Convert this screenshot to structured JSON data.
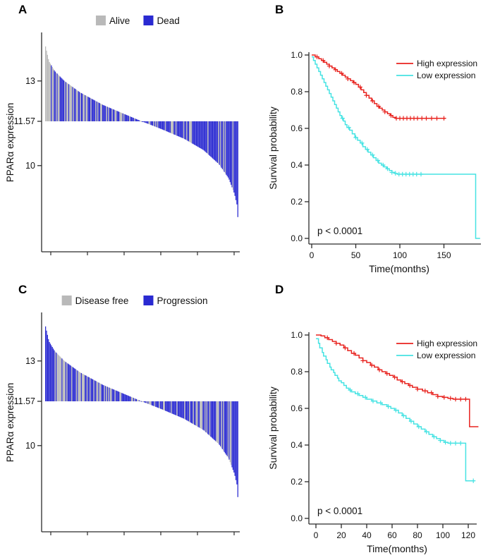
{
  "figure": {
    "background": "#ffffff"
  },
  "chart_data": [
    {
      "panel": "A",
      "type": "bar",
      "subtype": "expression-waterfall",
      "ylabel": "PPARα expression",
      "baseline": 11.57,
      "yticks": [
        {
          "v": 13,
          "label": "13"
        },
        {
          "v": 11.57,
          "label": "11.57"
        },
        {
          "v": 10,
          "label": "10"
        }
      ],
      "legend": [
        {
          "label": "Alive",
          "color": "#b9b9b9"
        },
        {
          "label": "Dead",
          "color": "#2a2ad1"
        }
      ],
      "n_bars": 200,
      "ylim": [
        7.5,
        14.6
      ],
      "value_profile": [
        [
          0,
          14.3
        ],
        [
          0.02,
          13.7
        ],
        [
          0.05,
          13.35
        ],
        [
          0.1,
          13.0
        ],
        [
          0.18,
          12.6
        ],
        [
          0.3,
          12.15
        ],
        [
          0.42,
          11.8
        ],
        [
          0.5,
          11.57
        ],
        [
          0.6,
          11.3
        ],
        [
          0.72,
          10.95
        ],
        [
          0.82,
          10.55
        ],
        [
          0.9,
          10.05
        ],
        [
          0.95,
          9.55
        ],
        [
          0.98,
          9.0
        ],
        [
          0.995,
          8.55
        ],
        [
          1.0,
          7.8
        ]
      ],
      "event_fraction_high": 0.5,
      "event_fraction_low": 0.8,
      "seed": 11
    },
    {
      "panel": "B",
      "type": "line",
      "subtype": "kaplan-meier",
      "xlabel": "Time(months)",
      "ylabel": "Survival probability",
      "xticks": [
        0,
        50,
        100,
        150
      ],
      "yticks": [
        0,
        0.2,
        0.4,
        0.6,
        0.8,
        1
      ],
      "ytick_labels": [
        "0.0",
        "0.2",
        "0.4",
        "0.6",
        "0.8",
        "1.0"
      ],
      "xlim": [
        0,
        190
      ],
      "ylim": [
        0,
        1
      ],
      "annotation": "p < 0.0001",
      "legend_position": "top-right",
      "series": [
        {
          "name": "High expression",
          "color": "#e8231f",
          "steps": [
            [
              0,
              1.0
            ],
            [
              4,
              0.99
            ],
            [
              8,
              0.98
            ],
            [
              11,
              0.97
            ],
            [
              14,
              0.96
            ],
            [
              17,
              0.95
            ],
            [
              20,
              0.94
            ],
            [
              23,
              0.93
            ],
            [
              26,
              0.92
            ],
            [
              29,
              0.91
            ],
            [
              32,
              0.9
            ],
            [
              35,
              0.89
            ],
            [
              38,
              0.88
            ],
            [
              41,
              0.87
            ],
            [
              44,
              0.86
            ],
            [
              47,
              0.85
            ],
            [
              50,
              0.84
            ],
            [
              53,
              0.825
            ],
            [
              56,
              0.81
            ],
            [
              59,
              0.795
            ],
            [
              62,
              0.78
            ],
            [
              65,
              0.765
            ],
            [
              68,
              0.75
            ],
            [
              71,
              0.735
            ],
            [
              74,
              0.72
            ],
            [
              77,
              0.71
            ],
            [
              80,
              0.7
            ],
            [
              83,
              0.69
            ],
            [
              86,
              0.68
            ],
            [
              89,
              0.67
            ],
            [
              92,
              0.66
            ],
            [
              95,
              0.655
            ],
            [
              152,
              0.655
            ]
          ],
          "censor_times": [
            6,
            13,
            20,
            27,
            34,
            41,
            48,
            55,
            62,
            69,
            76,
            83,
            90,
            96,
            100,
            104,
            108,
            112,
            116,
            120,
            125,
            130,
            136,
            142,
            150
          ]
        },
        {
          "name": "Low expression",
          "color": "#46e3e3",
          "steps": [
            [
              0,
              0.99
            ],
            [
              2,
              0.97
            ],
            [
              4,
              0.95
            ],
            [
              6,
              0.93
            ],
            [
              8,
              0.91
            ],
            [
              10,
              0.89
            ],
            [
              12,
              0.87
            ],
            [
              14,
              0.85
            ],
            [
              16,
              0.83
            ],
            [
              18,
              0.81
            ],
            [
              20,
              0.79
            ],
            [
              22,
              0.77
            ],
            [
              24,
              0.75
            ],
            [
              26,
              0.73
            ],
            [
              28,
              0.71
            ],
            [
              30,
              0.69
            ],
            [
              32,
              0.67
            ],
            [
              34,
              0.655
            ],
            [
              36,
              0.64
            ],
            [
              38,
              0.62
            ],
            [
              40,
              0.605
            ],
            [
              43,
              0.59
            ],
            [
              46,
              0.57
            ],
            [
              49,
              0.55
            ],
            [
              52,
              0.535
            ],
            [
              55,
              0.52
            ],
            [
              58,
              0.5
            ],
            [
              61,
              0.485
            ],
            [
              64,
              0.47
            ],
            [
              67,
              0.455
            ],
            [
              70,
              0.44
            ],
            [
              73,
              0.425
            ],
            [
              76,
              0.41
            ],
            [
              79,
              0.4
            ],
            [
              82,
              0.39
            ],
            [
              85,
              0.38
            ],
            [
              88,
              0.37
            ],
            [
              91,
              0.36
            ],
            [
              94,
              0.355
            ],
            [
              97,
              0.35
            ],
            [
              185,
              0.35
            ],
            [
              186,
              0.0
            ],
            [
              191,
              0.0
            ]
          ],
          "censor_times": [
            35,
            42,
            50,
            57,
            63,
            69,
            75,
            81,
            86,
            91,
            95,
            99,
            103,
            107,
            111,
            115,
            119,
            124
          ]
        }
      ]
    },
    {
      "panel": "C",
      "type": "bar",
      "subtype": "expression-waterfall",
      "ylabel": "PPARα expression",
      "baseline": 11.57,
      "yticks": [
        {
          "v": 13,
          "label": "13"
        },
        {
          "v": 11.57,
          "label": "11.57"
        },
        {
          "v": 10,
          "label": "10"
        }
      ],
      "legend": [
        {
          "label": "Disease free",
          "color": "#b9b9b9"
        },
        {
          "label": "Progression",
          "color": "#2a2ad1"
        }
      ],
      "n_bars": 200,
      "ylim": [
        7.5,
        14.6
      ],
      "value_profile": [
        [
          0,
          14.3
        ],
        [
          0.02,
          13.7
        ],
        [
          0.05,
          13.35
        ],
        [
          0.1,
          13.0
        ],
        [
          0.18,
          12.6
        ],
        [
          0.3,
          12.15
        ],
        [
          0.42,
          11.8
        ],
        [
          0.5,
          11.57
        ],
        [
          0.6,
          11.3
        ],
        [
          0.72,
          10.95
        ],
        [
          0.82,
          10.55
        ],
        [
          0.9,
          10.05
        ],
        [
          0.95,
          9.55
        ],
        [
          0.98,
          9.0
        ],
        [
          0.995,
          8.55
        ],
        [
          1.0,
          7.8
        ]
      ],
      "event_fraction_high": 0.45,
      "event_fraction_low": 0.8,
      "seed": 29
    },
    {
      "panel": "D",
      "type": "line",
      "subtype": "kaplan-meier",
      "xlabel": "Time(months)",
      "ylabel": "Survival probability",
      "xticks": [
        0,
        20,
        40,
        60,
        80,
        100,
        120
      ],
      "yticks": [
        0,
        0.2,
        0.4,
        0.6,
        0.8,
        1
      ],
      "ytick_labels": [
        "0.0",
        "0.2",
        "0.4",
        "0.6",
        "0.8",
        "1.0"
      ],
      "xlim": [
        0,
        128
      ],
      "ylim": [
        0,
        1
      ],
      "annotation": "p < 0.0001",
      "legend_position": "top-right",
      "series": [
        {
          "name": "High expression",
          "color": "#e8231f",
          "steps": [
            [
              0,
              1.0
            ],
            [
              4,
              0.995
            ],
            [
              7,
              0.985
            ],
            [
              10,
              0.975
            ],
            [
              13,
              0.965
            ],
            [
              16,
              0.955
            ],
            [
              19,
              0.945
            ],
            [
              22,
              0.93
            ],
            [
              25,
              0.915
            ],
            [
              28,
              0.9
            ],
            [
              31,
              0.89
            ],
            [
              34,
              0.875
            ],
            [
              37,
              0.86
            ],
            [
              40,
              0.85
            ],
            [
              43,
              0.835
            ],
            [
              46,
              0.825
            ],
            [
              49,
              0.81
            ],
            [
              52,
              0.8
            ],
            [
              55,
              0.79
            ],
            [
              58,
              0.78
            ],
            [
              61,
              0.77
            ],
            [
              64,
              0.755
            ],
            [
              67,
              0.745
            ],
            [
              70,
              0.735
            ],
            [
              73,
              0.725
            ],
            [
              76,
              0.715
            ],
            [
              80,
              0.705
            ],
            [
              84,
              0.695
            ],
            [
              88,
              0.685
            ],
            [
              92,
              0.675
            ],
            [
              96,
              0.665
            ],
            [
              100,
              0.66
            ],
            [
              104,
              0.655
            ],
            [
              108,
              0.65
            ],
            [
              120,
              0.65
            ],
            [
              121,
              0.5
            ],
            [
              128,
              0.5
            ]
          ],
          "censor_times": [
            9,
            16,
            23,
            30,
            37,
            44,
            50,
            56,
            62,
            68,
            74,
            80,
            86,
            91,
            96,
            101,
            106,
            110,
            114,
            118
          ]
        },
        {
          "name": "Low expression",
          "color": "#46e3e3",
          "steps": [
            [
              0,
              0.98
            ],
            [
              2,
              0.955
            ],
            [
              3,
              0.93
            ],
            [
              5,
              0.905
            ],
            [
              6,
              0.885
            ],
            [
              8,
              0.865
            ],
            [
              9,
              0.845
            ],
            [
              11,
              0.825
            ],
            [
              12,
              0.81
            ],
            [
              14,
              0.795
            ],
            [
              15,
              0.78
            ],
            [
              17,
              0.765
            ],
            [
              18,
              0.75
            ],
            [
              20,
              0.74
            ],
            [
              22,
              0.725
            ],
            [
              24,
              0.71
            ],
            [
              26,
              0.7
            ],
            [
              28,
              0.69
            ],
            [
              31,
              0.68
            ],
            [
              34,
              0.67
            ],
            [
              37,
              0.66
            ],
            [
              40,
              0.65
            ],
            [
              44,
              0.64
            ],
            [
              48,
              0.63
            ],
            [
              52,
              0.62
            ],
            [
              56,
              0.61
            ],
            [
              59,
              0.6
            ],
            [
              62,
              0.59
            ],
            [
              65,
              0.575
            ],
            [
              68,
              0.56
            ],
            [
              71,
              0.545
            ],
            [
              74,
              0.53
            ],
            [
              77,
              0.515
            ],
            [
              80,
              0.5
            ],
            [
              83,
              0.487
            ],
            [
              86,
              0.472
            ],
            [
              89,
              0.458
            ],
            [
              92,
              0.445
            ],
            [
              95,
              0.435
            ],
            [
              98,
              0.425
            ],
            [
              101,
              0.415
            ],
            [
              104,
              0.41
            ],
            [
              116,
              0.41
            ],
            [
              118,
              0.205
            ],
            [
              125,
              0.205
            ]
          ],
          "censor_times": [
            27,
            33,
            39,
            45,
            51,
            57,
            63,
            69,
            75,
            81,
            87,
            93,
            98,
            102,
            106,
            110,
            114,
            124
          ]
        }
      ]
    }
  ]
}
